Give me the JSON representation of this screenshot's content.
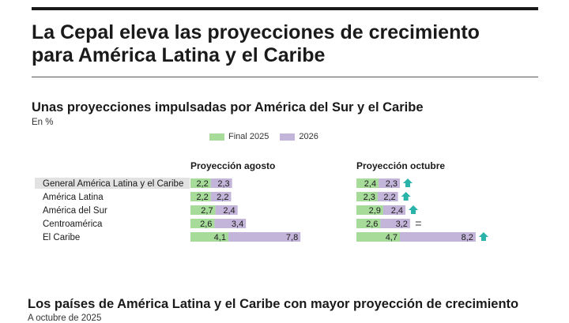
{
  "header": {
    "title_line1": "La Cepal eleva las proyecciones de crecimiento",
    "title_line2": "para América Latina y el Caribe"
  },
  "chart_data": {
    "type": "bar",
    "title": "Unas proyecciones impulsadas por América del Sur y el Caribe",
    "unit": "En %",
    "legend": [
      {
        "name": "Final 2025",
        "color": "#a6db9a"
      },
      {
        "name": "2026",
        "color": "#c3b4d9"
      }
    ],
    "categories": [
      "General América Latina y el Caribe",
      "América Latina",
      "América del Sur",
      "Centroamérica",
      "El Caribe"
    ],
    "panels": [
      {
        "title": "Proyección agosto",
        "series": [
          {
            "name": "Final 2025",
            "values": [
              2.2,
              2.2,
              2.7,
              2.6,
              4.1
            ],
            "labels": [
              "2,2",
              "2,2",
              "2,7",
              "2,6",
              "4,1"
            ]
          },
          {
            "name": "2026",
            "values": [
              2.3,
              2.2,
              2.4,
              3.4,
              7.8
            ],
            "labels": [
              "2,3",
              "2,2",
              "2,4",
              "3,4",
              "7,8"
            ]
          }
        ]
      },
      {
        "title": "Proyección octubre",
        "series": [
          {
            "name": "Final 2025",
            "values": [
              2.4,
              2.3,
              2.9,
              2.6,
              4.7
            ],
            "labels": [
              "2,4",
              "2,3",
              "2,9",
              "2,6",
              "4,7"
            ]
          },
          {
            "name": "2026",
            "values": [
              2.3,
              2.2,
              2.4,
              3.2,
              8.2
            ],
            "labels": [
              "2,3",
              "2,2",
              "2,4",
              "3,2",
              "8,2"
            ]
          }
        ],
        "trend": [
          "up",
          "up",
          "up",
          "equal",
          "up"
        ]
      }
    ],
    "colors": {
      "final2025": "#a6db9a",
      "y2026": "#c3b4d9",
      "arrow": "#2ab3a8",
      "equal": "#9a9a9a",
      "highlight": "#e2e2e2"
    }
  },
  "bottom": {
    "title": "Los países de América Latina y el Caribe con mayor proyección de crecimiento",
    "subtitle": "A octubre de 2025"
  }
}
